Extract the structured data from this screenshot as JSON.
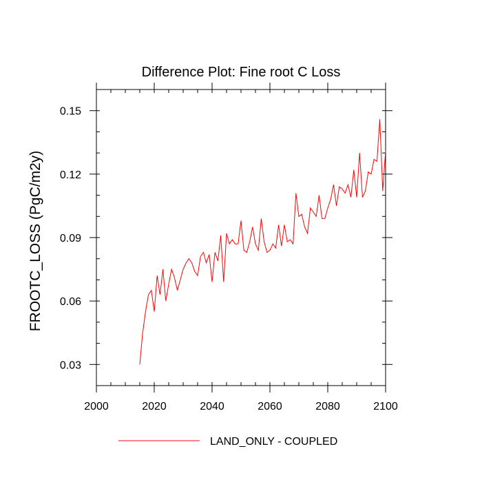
{
  "chart_data": {
    "type": "line",
    "title": "Difference Plot: Fine root C Loss",
    "xlabel": "",
    "ylabel": "FROOTC_LOSS  (PgC/m2y)",
    "xlim": [
      2000,
      2100
    ],
    "ylim": [
      0.02,
      0.16
    ],
    "xticks": [
      2000,
      2020,
      2040,
      2060,
      2080,
      2100
    ],
    "xtick_labels": [
      "2000",
      "2020",
      "2040",
      "2060",
      "2080",
      "2100"
    ],
    "yticks": [
      0.03,
      0.06,
      0.09,
      0.12,
      0.15
    ],
    "ytick_labels": [
      "0.03",
      "0.06",
      "0.09",
      "0.12",
      "0.15"
    ],
    "grid": false,
    "legend": "bottom",
    "series": [
      {
        "name": "LAND_ONLY - COUPLED",
        "color": "#ff0000",
        "x": [
          2015,
          2016,
          2017,
          2018,
          2019,
          2020,
          2021,
          2022,
          2023,
          2024,
          2025,
          2026,
          2027,
          2028,
          2029,
          2030,
          2031,
          2032,
          2033,
          2034,
          2035,
          2036,
          2037,
          2038,
          2039,
          2040,
          2041,
          2042,
          2043,
          2044,
          2045,
          2046,
          2047,
          2048,
          2049,
          2050,
          2051,
          2052,
          2053,
          2054,
          2055,
          2056,
          2057,
          2058,
          2059,
          2060,
          2061,
          2062,
          2063,
          2064,
          2065,
          2066,
          2067,
          2068,
          2069,
          2070,
          2071,
          2072,
          2073,
          2074,
          2075,
          2076,
          2077,
          2078,
          2079,
          2080,
          2081,
          2082,
          2083,
          2084,
          2085,
          2086,
          2087,
          2088,
          2089,
          2090,
          2091,
          2092,
          2093,
          2094,
          2095,
          2096,
          2097,
          2098,
          2099,
          2100
        ],
        "values": [
          0.03,
          0.045,
          0.055,
          0.063,
          0.065,
          0.055,
          0.072,
          0.063,
          0.075,
          0.06,
          0.068,
          0.075,
          0.071,
          0.065,
          0.07,
          0.075,
          0.078,
          0.08,
          0.078,
          0.074,
          0.072,
          0.081,
          0.083,
          0.078,
          0.082,
          0.069,
          0.083,
          0.079,
          0.091,
          0.069,
          0.092,
          0.087,
          0.089,
          0.087,
          0.087,
          0.098,
          0.084,
          0.083,
          0.088,
          0.095,
          0.087,
          0.084,
          0.099,
          0.088,
          0.083,
          0.084,
          0.087,
          0.085,
          0.096,
          0.086,
          0.096,
          0.088,
          0.089,
          0.087,
          0.111,
          0.1,
          0.101,
          0.095,
          0.092,
          0.104,
          0.102,
          0.1,
          0.11,
          0.099,
          0.099,
          0.104,
          0.108,
          0.115,
          0.105,
          0.114,
          0.113,
          0.111,
          0.115,
          0.109,
          0.122,
          0.109,
          0.13,
          0.109,
          0.112,
          0.121,
          0.12,
          0.127,
          0.126,
          0.146,
          0.112,
          0.131
        ]
      }
    ]
  }
}
